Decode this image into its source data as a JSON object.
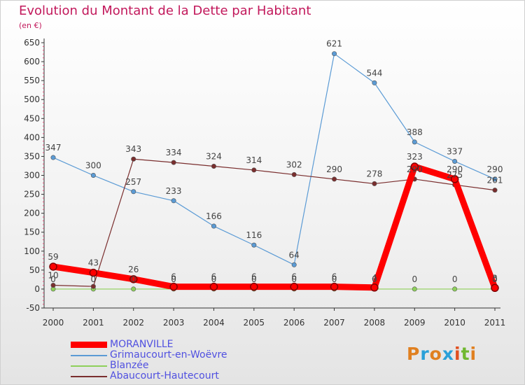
{
  "header": {
    "title": "Evolution du Montant de la Dette par Habitant",
    "unit": "(en €)"
  },
  "logo": {
    "text": "Proxiti",
    "colors": [
      "#e08020",
      "#2aa0d8",
      "#e08020",
      "#2aa0d8",
      "#e05020",
      "#70b830",
      "#e08020"
    ]
  },
  "chart_data": {
    "type": "line",
    "title": "Evolution du Montant de la Dette par Habitant",
    "ylabel": "(en €)",
    "xlabel": "",
    "x": [
      "2000",
      "2001",
      "2002",
      "2003",
      "2004",
      "2005",
      "2006",
      "2007",
      "2008",
      "2009",
      "2010",
      "2011"
    ],
    "ylim": [
      -50,
      650
    ],
    "yticks": [
      -50,
      0,
      50,
      100,
      150,
      200,
      250,
      300,
      350,
      400,
      450,
      500,
      550,
      600,
      650
    ],
    "grid": false,
    "legend_position": "bottom-left",
    "series": [
      {
        "name": "MORANVILLE",
        "color": "#ff0000",
        "values": [
          59,
          43,
          26,
          6,
          6,
          6,
          6,
          6,
          4,
          323,
          290,
          3
        ],
        "labels": [
          "59",
          "43",
          "26",
          "6",
          "6",
          "6",
          "6",
          "6",
          "4",
          "323",
          "290",
          "3"
        ]
      },
      {
        "name": "Grimaucourt-en-Woëvre",
        "color": "#5b9bd5",
        "values": [
          347,
          300,
          257,
          233,
          166,
          116,
          64,
          621,
          544,
          388,
          337,
          290
        ],
        "labels": [
          "347",
          "300",
          "257",
          "233",
          "166",
          "116",
          "64",
          "621",
          "544",
          "388",
          "337",
          "290"
        ]
      },
      {
        "name": "Blanzée",
        "color": "#8ed05a",
        "values": [
          0,
          0,
          0,
          0,
          0,
          0,
          0,
          0,
          0,
          0,
          0,
          0
        ],
        "labels": [
          "0",
          "0",
          "0",
          "0",
          "0",
          "0",
          "0",
          "0",
          "0",
          "0",
          "0",
          "0"
        ]
      },
      {
        "name": "Abaucourt-Hautecourt",
        "color": "#7a2e2e",
        "values": [
          10,
          7,
          343,
          334,
          324,
          314,
          302,
          290,
          278,
          290,
          275,
          261
        ],
        "labels": [
          "10",
          "",
          "343",
          "334",
          "324",
          "314",
          "302",
          "290",
          "278",
          "290",
          "275",
          "261"
        ]
      }
    ]
  }
}
